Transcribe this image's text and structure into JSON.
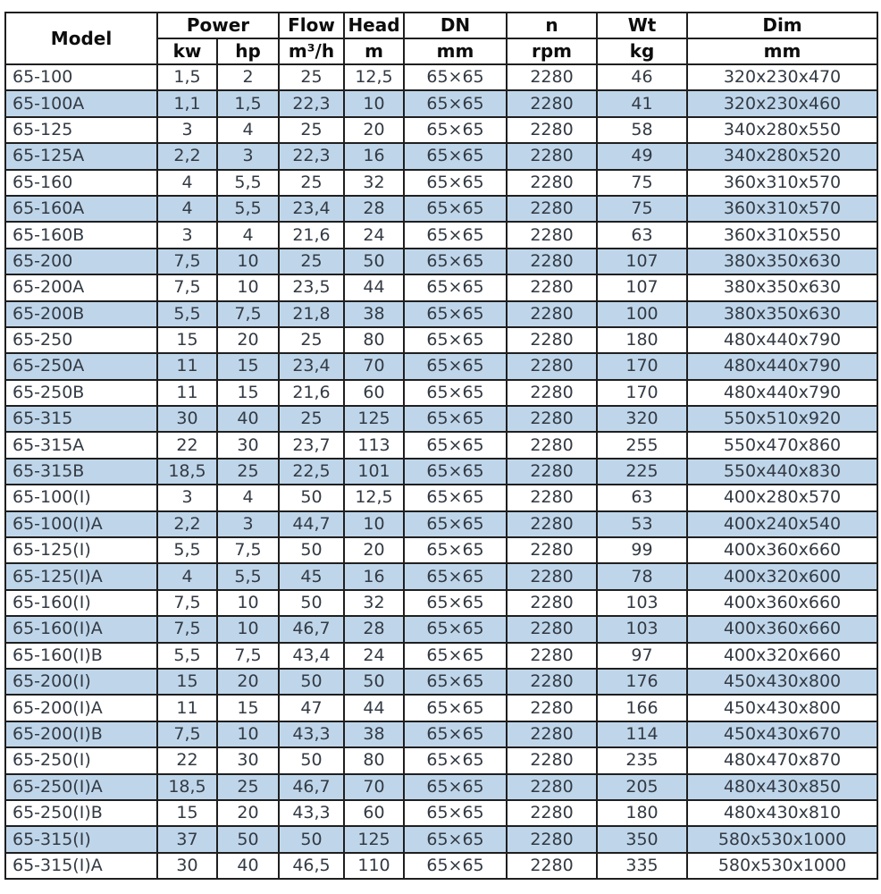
{
  "colors": {
    "page_bg": "#ffffff",
    "base_row": "#ffffff",
    "alt_row": "#bfd6ea",
    "border": "#1f1f1f",
    "header_text": "#0d0d0d",
    "body_text": "#333a44"
  },
  "table": {
    "header": {
      "model_label": "Model",
      "power_label": "Power",
      "kw_label": "kw",
      "hp_label": "hp",
      "flow_label": "Flow",
      "flow_unit": "m³/h",
      "head_label": "Head",
      "head_unit": "m",
      "dn_label": "DN",
      "dn_unit": "mm",
      "n_label": "n",
      "n_unit": "rpm",
      "wt_label": "Wt",
      "wt_unit": "kg",
      "dim_label": "Dim",
      "dim_unit": "mm"
    },
    "rows": [
      {
        "model": "65-100",
        "kw": "1,5",
        "hp": "2",
        "flow": "25",
        "head": "12,5",
        "dn": "65×65",
        "n": "2280",
        "wt": "46",
        "dim": "320x230x470"
      },
      {
        "model": "65-100A",
        "kw": "1,1",
        "hp": "1,5",
        "flow": "22,3",
        "head": "10",
        "dn": "65×65",
        "n": "2280",
        "wt": "41",
        "dim": "320x230x460"
      },
      {
        "model": "65-125",
        "kw": "3",
        "hp": "4",
        "flow": "25",
        "head": "20",
        "dn": "65×65",
        "n": "2280",
        "wt": "58",
        "dim": "340x280x550"
      },
      {
        "model": "65-125A",
        "kw": "2,2",
        "hp": "3",
        "flow": "22,3",
        "head": "16",
        "dn": "65×65",
        "n": "2280",
        "wt": "49",
        "dim": "340x280x520"
      },
      {
        "model": "65-160",
        "kw": "4",
        "hp": "5,5",
        "flow": "25",
        "head": "32",
        "dn": "65×65",
        "n": "2280",
        "wt": "75",
        "dim": "360x310x570"
      },
      {
        "model": "65-160A",
        "kw": "4",
        "hp": "5,5",
        "flow": "23,4",
        "head": "28",
        "dn": "65×65",
        "n": "2280",
        "wt": "75",
        "dim": "360x310x570"
      },
      {
        "model": "65-160B",
        "kw": "3",
        "hp": "4",
        "flow": "21,6",
        "head": "24",
        "dn": "65×65",
        "n": "2280",
        "wt": "63",
        "dim": "360x310x550"
      },
      {
        "model": "65-200",
        "kw": "7,5",
        "hp": "10",
        "flow": "25",
        "head": "50",
        "dn": "65×65",
        "n": "2280",
        "wt": "107",
        "dim": "380x350x630"
      },
      {
        "model": "65-200A",
        "kw": "7,5",
        "hp": "10",
        "flow": "23,5",
        "head": "44",
        "dn": "65×65",
        "n": "2280",
        "wt": "107",
        "dim": "380x350x630"
      },
      {
        "model": "65-200B",
        "kw": "5,5",
        "hp": "7,5",
        "flow": "21,8",
        "head": "38",
        "dn": "65×65",
        "n": "2280",
        "wt": "100",
        "dim": "380x350x630"
      },
      {
        "model": "65-250",
        "kw": "15",
        "hp": "20",
        "flow": "25",
        "head": "80",
        "dn": "65×65",
        "n": "2280",
        "wt": "180",
        "dim": "480x440x790"
      },
      {
        "model": "65-250A",
        "kw": "11",
        "hp": "15",
        "flow": "23,4",
        "head": "70",
        "dn": "65×65",
        "n": "2280",
        "wt": "170",
        "dim": "480x440x790"
      },
      {
        "model": "65-250B",
        "kw": "11",
        "hp": "15",
        "flow": "21,6",
        "head": "60",
        "dn": "65×65",
        "n": "2280",
        "wt": "170",
        "dim": "480x440x790"
      },
      {
        "model": "65-315",
        "kw": "30",
        "hp": "40",
        "flow": "25",
        "head": "125",
        "dn": "65×65",
        "n": "2280",
        "wt": "320",
        "dim": "550x510x920"
      },
      {
        "model": "65-315A",
        "kw": "22",
        "hp": "30",
        "flow": "23,7",
        "head": "113",
        "dn": "65×65",
        "n": "2280",
        "wt": "255",
        "dim": "550x470x860"
      },
      {
        "model": "65-315B",
        "kw": "18,5",
        "hp": "25",
        "flow": "22,5",
        "head": "101",
        "dn": "65×65",
        "n": "2280",
        "wt": "225",
        "dim": "550x440x830"
      },
      {
        "model": "65-100(I)",
        "kw": "3",
        "hp": "4",
        "flow": "50",
        "head": "12,5",
        "dn": "65×65",
        "n": "2280",
        "wt": "63",
        "dim": "400x280x570"
      },
      {
        "model": "65-100(I)A",
        "kw": "2,2",
        "hp": "3",
        "flow": "44,7",
        "head": "10",
        "dn": "65×65",
        "n": "2280",
        "wt": "53",
        "dim": "400x240x540"
      },
      {
        "model": "65-125(I)",
        "kw": "5,5",
        "hp": "7,5",
        "flow": "50",
        "head": "20",
        "dn": "65×65",
        "n": "2280",
        "wt": "99",
        "dim": "400x360x660"
      },
      {
        "model": "65-125(I)A",
        "kw": "4",
        "hp": "5,5",
        "flow": "45",
        "head": "16",
        "dn": "65×65",
        "n": "2280",
        "wt": "78",
        "dim": "400x320x600"
      },
      {
        "model": "65-160(I)",
        "kw": "7,5",
        "hp": "10",
        "flow": "50",
        "head": "32",
        "dn": "65×65",
        "n": "2280",
        "wt": "103",
        "dim": "400x360x660"
      },
      {
        "model": "65-160(I)A",
        "kw": "7,5",
        "hp": "10",
        "flow": "46,7",
        "head": "28",
        "dn": "65×65",
        "n": "2280",
        "wt": "103",
        "dim": "400x360x660"
      },
      {
        "model": "65-160(I)B",
        "kw": "5,5",
        "hp": "7,5",
        "flow": "43,4",
        "head": "24",
        "dn": "65×65",
        "n": "2280",
        "wt": "97",
        "dim": "400x320x660"
      },
      {
        "model": "65-200(I)",
        "kw": "15",
        "hp": "20",
        "flow": "50",
        "head": "50",
        "dn": "65×65",
        "n": "2280",
        "wt": "176",
        "dim": "450x430x800"
      },
      {
        "model": "65-200(I)A",
        "kw": "11",
        "hp": "15",
        "flow": "47",
        "head": "44",
        "dn": "65×65",
        "n": "2280",
        "wt": "166",
        "dim": "450x430x800"
      },
      {
        "model": "65-200(I)B",
        "kw": "7,5",
        "hp": "10",
        "flow": "43,3",
        "head": "38",
        "dn": "65×65",
        "n": "2280",
        "wt": "114",
        "dim": "450x430x670"
      },
      {
        "model": "65-250(I)",
        "kw": "22",
        "hp": "30",
        "flow": "50",
        "head": "80",
        "dn": "65×65",
        "n": "2280",
        "wt": "235",
        "dim": "480x470x870"
      },
      {
        "model": "65-250(I)A",
        "kw": "18,5",
        "hp": "25",
        "flow": "46,7",
        "head": "70",
        "dn": "65×65",
        "n": "2280",
        "wt": "205",
        "dim": "480x430x850"
      },
      {
        "model": "65-250(I)B",
        "kw": "15",
        "hp": "20",
        "flow": "43,3",
        "head": "60",
        "dn": "65×65",
        "n": "2280",
        "wt": "180",
        "dim": "480x430x810"
      },
      {
        "model": "65-315(I)",
        "kw": "37",
        "hp": "50",
        "flow": "50",
        "head": "125",
        "dn": "65×65",
        "n": "2280",
        "wt": "350",
        "dim": "580x530x1000"
      },
      {
        "model": "65-315(I)A",
        "kw": "30",
        "hp": "40",
        "flow": "46,5",
        "head": "110",
        "dn": "65×65",
        "n": "2280",
        "wt": "335",
        "dim": "580x530x1000"
      }
    ]
  }
}
